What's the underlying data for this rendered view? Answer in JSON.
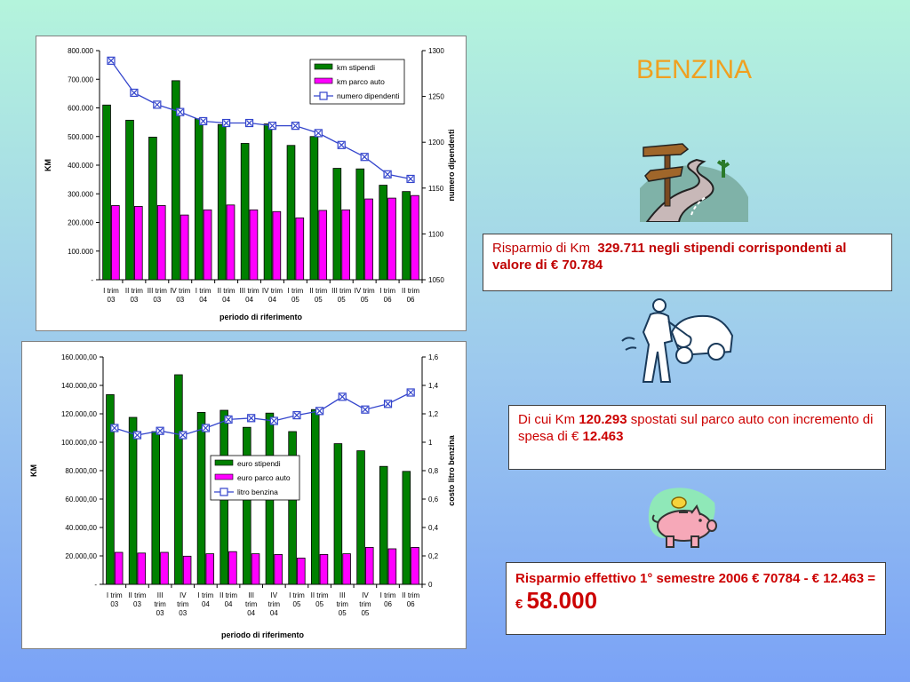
{
  "slide": {
    "title": "BENZINA",
    "colors": {
      "title": "#f0a020",
      "note_text": "#c00000",
      "note_text2": "#cc0000"
    },
    "note1": {
      "text": "Risparmio di Km",
      "bold": "329.711 negli stipendi corrispondenti al valore di   € 70.784"
    },
    "note2": {
      "text_a": "Di cui Km ",
      "bold_a": "120.293",
      "text_b": " spostati sul parco auto con incremento di spesa di € ",
      "bold_b": "12.463"
    },
    "note3": {
      "line1": "Risparmio effettivo 1° semestre 2006  € 70784 - € 12.463 = € ",
      "big": "58.000"
    },
    "icons": [
      "signpost-road-clipart-icon",
      "man-refueling-car-clipart-icon",
      "piggy-bank-coin-clipart-icon"
    ]
  },
  "chart_data": [
    {
      "type": "bar",
      "categories": [
        "I trim\n03",
        "II trim\n03",
        "III trim\n03",
        "IV trim\n03",
        "I trim\n04",
        "II trim\n04",
        "III trim\n04",
        "IV trim\n04",
        "I trim\n05",
        "II trim\n05",
        "III trim\n05",
        "IV trim\n05",
        "I trim\n06",
        "II trim\n06"
      ],
      "ylabel": "KM",
      "y2label": "numero dipendenti",
      "xlabel": "periodo di riferimento",
      "ylim": [
        0,
        800000
      ],
      "yticks": [
        "-",
        "100.000",
        "200.000",
        "300.000",
        "400.000",
        "500.000",
        "600.000",
        "700.000",
        "800.000"
      ],
      "y2lim": [
        1050,
        1300
      ],
      "y2ticks": [
        "1050",
        "1100",
        "1150",
        "1200",
        "1250",
        "1300"
      ],
      "series": [
        {
          "name": "km stipendi",
          "type": "bar",
          "color": "#008000",
          "values": [
            610000,
            557000,
            498000,
            695000,
            562000,
            542000,
            476000,
            544000,
            469000,
            500000,
            389000,
            387000,
            330000,
            308000
          ]
        },
        {
          "name": "km parco auto",
          "type": "bar",
          "color": "#ff00ff",
          "values": [
            259000,
            256000,
            259000,
            226000,
            244000,
            261000,
            244000,
            238000,
            216000,
            242000,
            244000,
            282000,
            285000,
            294000
          ]
        },
        {
          "name": "numero dipendenti",
          "type": "line",
          "axis": "y2",
          "color": "#3344cc",
          "values": [
            1289,
            1254,
            1241,
            1233,
            1223,
            1221,
            1221,
            1218,
            1218,
            1210,
            1197,
            1184,
            1165,
            1160
          ]
        }
      ],
      "legend": "top-right"
    },
    {
      "type": "bar",
      "categories": [
        "I trim\n03",
        "II trim\n03",
        "III\ntrim\n03",
        "IV\ntrim\n03",
        "I trim\n04",
        "II trim\n04",
        "III\ntrim\n04",
        "IV\ntrim\n04",
        "I trim\n05",
        "II trim\n05",
        "III\ntrim\n05",
        "IV\ntrim\n05",
        "I trim\n06",
        "II trim\n06"
      ],
      "ylabel": "KM",
      "y2label": "costo litro benzina",
      "xlabel": "periodo di riferimento",
      "ylim": [
        0,
        160000
      ],
      "yticks": [
        "-",
        "20.000,00",
        "40.000,00",
        "60.000,00",
        "80.000,00",
        "100.000,00",
        "120.000,00",
        "140.000,00",
        "160.000,00"
      ],
      "y2lim": [
        0,
        1.6
      ],
      "y2ticks": [
        "0",
        "0,2",
        "0,4",
        "0,6",
        "0,8",
        "1",
        "1,2",
        "1,4",
        "1,6"
      ],
      "series": [
        {
          "name": "euro stipendi",
          "type": "bar",
          "color": "#008000",
          "values": [
            133500,
            117500,
            107500,
            147500,
            121000,
            122500,
            110500,
            120500,
            107500,
            123000,
            99000,
            94000,
            83000,
            79500
          ]
        },
        {
          "name": "euro parco auto",
          "type": "bar",
          "color": "#ff00ff",
          "values": [
            22500,
            22000,
            22500,
            19800,
            21500,
            23000,
            21500,
            21000,
            18500,
            21000,
            21500,
            26000,
            25000,
            26000
          ]
        },
        {
          "name": "litro benzina",
          "type": "line",
          "axis": "y2",
          "color": "#3344cc",
          "values": [
            1.1,
            1.05,
            1.08,
            1.05,
            1.1,
            1.16,
            1.17,
            1.15,
            1.19,
            1.22,
            1.32,
            1.23,
            1.27,
            1.35
          ]
        }
      ],
      "legend": "center"
    }
  ]
}
